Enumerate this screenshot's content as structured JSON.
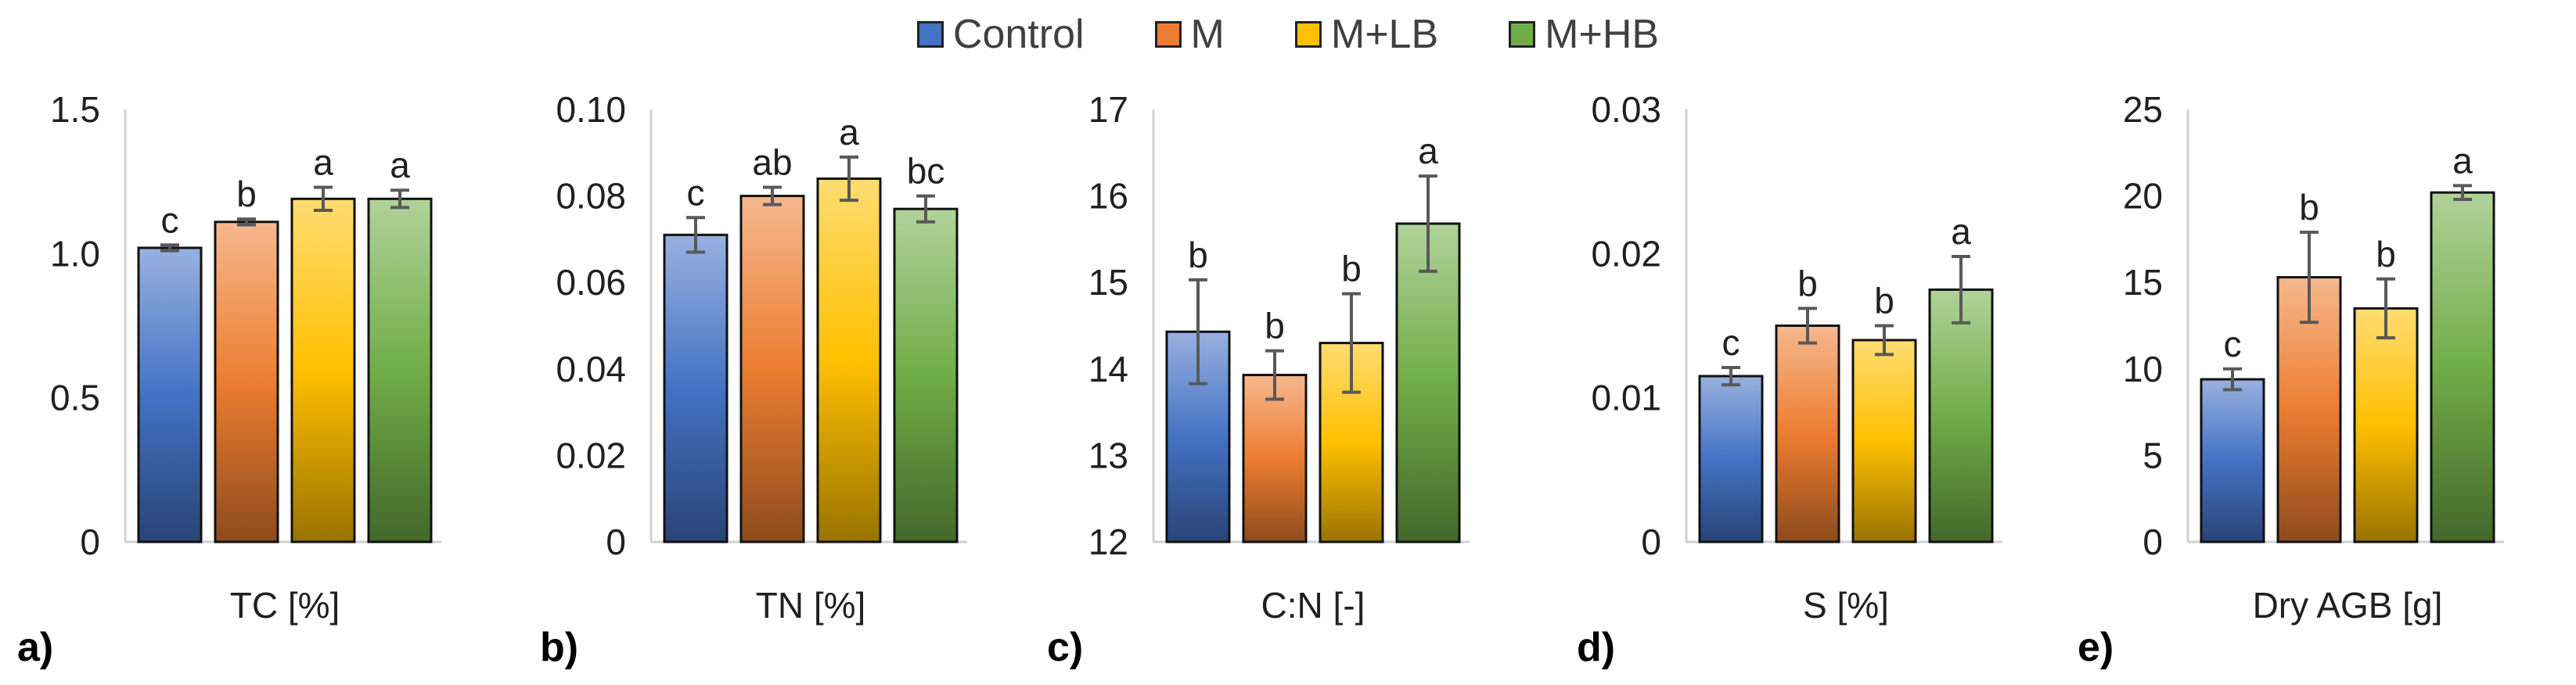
{
  "legend": [
    {
      "name": "Control",
      "color": "#4472C4"
    },
    {
      "name": "M",
      "color": "#ED7D31"
    },
    {
      "name": "M+LB",
      "color": "#FFC000"
    },
    {
      "name": "M+HB",
      "color": "#70AD47"
    }
  ],
  "chart_data": [
    {
      "type": "bar",
      "panel": "a)",
      "xlabel": "TC [%]",
      "categories": [
        "Control",
        "M",
        "M+LB",
        "M+HB"
      ],
      "values": [
        1.02,
        1.11,
        1.19,
        1.19
      ],
      "errors": [
        0.01,
        0.01,
        0.04,
        0.03
      ],
      "sig": [
        "c",
        "b",
        "a",
        "a"
      ],
      "ylim": [
        0,
        1.5
      ],
      "yticks": [
        0,
        0.5,
        1.0,
        1.5
      ],
      "ytick_labels": [
        "0",
        "0.5",
        "1.0",
        "1.5"
      ]
    },
    {
      "type": "bar",
      "panel": "b)",
      "xlabel": "TN [%]",
      "categories": [
        "Control",
        "M",
        "M+LB",
        "M+HB"
      ],
      "values": [
        0.071,
        0.08,
        0.084,
        0.077
      ],
      "errors": [
        0.004,
        0.002,
        0.005,
        0.003
      ],
      "sig": [
        "c",
        "ab",
        "a",
        "bc"
      ],
      "ylim": [
        0,
        0.1
      ],
      "yticks": [
        0,
        0.02,
        0.04,
        0.06,
        0.08,
        0.1
      ],
      "ytick_labels": [
        "0",
        "0.02",
        "0.04",
        "0.06",
        "0.08",
        "0.10"
      ]
    },
    {
      "type": "bar",
      "panel": "c)",
      "xlabel": "C:N [-]",
      "categories": [
        "Control",
        "M",
        "M+LB",
        "M+HB"
      ],
      "values": [
        14.43,
        13.93,
        14.3,
        15.68
      ],
      "errors": [
        0.6,
        0.28,
        0.57,
        0.55
      ],
      "sig": [
        "b",
        "b",
        "b",
        "a"
      ],
      "ylim": [
        12,
        17
      ],
      "yticks": [
        12,
        13,
        14,
        15,
        16,
        17
      ],
      "ytick_labels": [
        "12",
        "13",
        "14",
        "15",
        "16",
        "17"
      ]
    },
    {
      "type": "bar",
      "panel": "d)",
      "xlabel": "S [%]",
      "categories": [
        "Control",
        "M",
        "M+LB",
        "M+HB"
      ],
      "values": [
        0.0115,
        0.015,
        0.014,
        0.0175
      ],
      "errors": [
        0.0006,
        0.0012,
        0.001,
        0.0023
      ],
      "sig": [
        "c",
        "b",
        "b",
        "a"
      ],
      "ylim": [
        0,
        0.03
      ],
      "yticks": [
        0,
        0.01,
        0.02,
        0.03
      ],
      "ytick_labels": [
        "0",
        "0.01",
        "0.02",
        "0.03"
      ]
    },
    {
      "type": "bar",
      "panel": "e)",
      "xlabel": "Dry AGB [g]",
      "categories": [
        "Control",
        "M",
        "M+LB",
        "M+HB"
      ],
      "values": [
        9.4,
        15.3,
        13.5,
        20.2
      ],
      "errors": [
        0.6,
        2.6,
        1.7,
        0.4
      ],
      "sig": [
        "c",
        "b",
        "b",
        "a"
      ],
      "ylim": [
        0,
        25
      ],
      "yticks": [
        0,
        5,
        10,
        15,
        20,
        25
      ],
      "ytick_labels": [
        "0",
        "5",
        "10",
        "15",
        "20",
        "25"
      ]
    }
  ]
}
